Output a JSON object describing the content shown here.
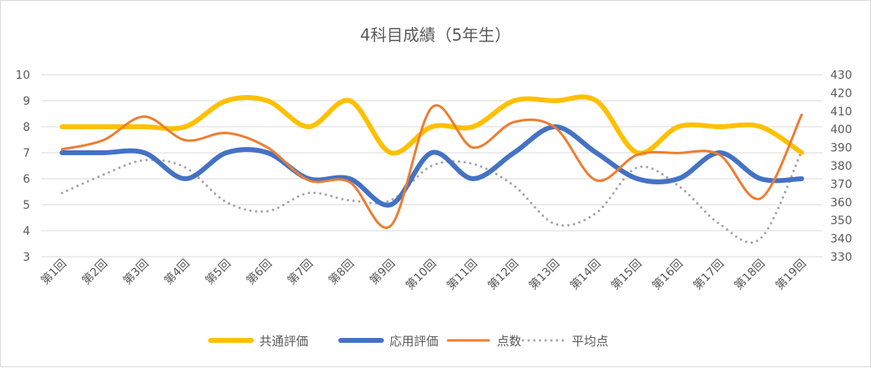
{
  "chart_data": {
    "type": "line",
    "title": "4科目成績（5年生）",
    "categories": [
      "第1回",
      "第2回",
      "第3回",
      "第4回",
      "第5回",
      "第6回",
      "第7回",
      "第8回",
      "第9回",
      "第10回",
      "第11回",
      "第12回",
      "第13回",
      "第14回",
      "第15回",
      "第16回",
      "第17回",
      "第18回",
      "第19回"
    ],
    "ylim": [
      3,
      10
    ],
    "y_ticks": [
      3,
      4,
      5,
      6,
      7,
      8,
      9,
      10
    ],
    "y2lim": [
      330,
      430
    ],
    "y2_ticks": [
      330,
      340,
      350,
      360,
      370,
      380,
      390,
      400,
      410,
      420,
      430
    ],
    "grid": true,
    "smooth": true,
    "legend_position": "bottom",
    "series": [
      {
        "name": "共通評価",
        "axis": "left",
        "color": "#FFC000",
        "style": "solid",
        "values": [
          8,
          8,
          8,
          8,
          9,
          9,
          8,
          9,
          7,
          8,
          8,
          9,
          9,
          9,
          7,
          8,
          8,
          8,
          7
        ]
      },
      {
        "name": "応用評価",
        "axis": "left",
        "color": "#4472C4",
        "style": "solid",
        "values": [
          7,
          7,
          7,
          6,
          7,
          7,
          6,
          6,
          5,
          7,
          6,
          7,
          8,
          7,
          6,
          6,
          7,
          6,
          6
        ]
      },
      {
        "name": "点数",
        "axis": "right",
        "color": "#ED7D31",
        "style": "solid",
        "values": [
          389,
          394,
          407,
          394,
          398,
          390,
          372,
          371,
          347,
          412,
          390,
          404,
          401,
          372,
          386,
          387,
          386,
          362,
          408
        ]
      },
      {
        "name": "平均点",
        "axis": "right",
        "color": "#A5A5A5",
        "style": "dotted",
        "values": [
          365,
          375,
          383,
          379,
          360,
          355,
          365,
          361,
          361,
          380,
          381,
          369,
          348,
          354,
          379,
          369,
          348,
          340,
          388
        ]
      }
    ]
  }
}
